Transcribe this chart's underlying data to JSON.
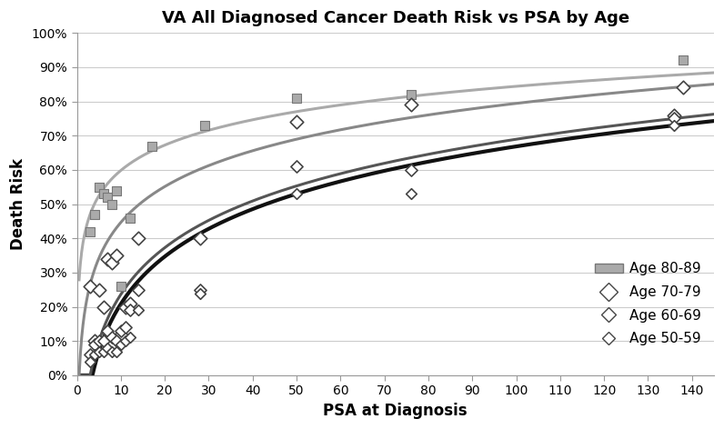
{
  "title": "VA All Diagnosed Cancer Death Risk vs PSA by Age",
  "xlabel": "PSA at Diagnosis",
  "ylabel": "Death Risk",
  "xlim": [
    0,
    145
  ],
  "ylim": [
    0,
    1.0
  ],
  "xticks": [
    0,
    10,
    20,
    30,
    40,
    50,
    60,
    70,
    80,
    90,
    100,
    110,
    120,
    130,
    140
  ],
  "yticks": [
    0,
    0.1,
    0.2,
    0.3,
    0.4,
    0.5,
    0.6,
    0.7,
    0.8,
    0.9,
    1.0
  ],
  "scatter_80_89": {
    "x": [
      3,
      4,
      5,
      6,
      7,
      8,
      9,
      10,
      12,
      17,
      29,
      50,
      76,
      138
    ],
    "y": [
      0.42,
      0.47,
      0.55,
      0.53,
      0.52,
      0.5,
      0.54,
      0.26,
      0.46,
      0.67,
      0.73,
      0.81,
      0.82,
      0.92
    ],
    "color": "#aaaaaa",
    "edgecolor": "#777777",
    "marker": "s",
    "size": 55
  },
  "scatter_70_79": {
    "x": [
      3,
      4,
      5,
      6,
      7,
      8,
      9,
      10,
      11,
      12,
      14,
      28,
      50,
      76,
      136,
      138
    ],
    "y": [
      0.26,
      0.1,
      0.25,
      0.2,
      0.34,
      0.33,
      0.35,
      0.12,
      0.2,
      0.21,
      0.4,
      0.4,
      0.74,
      0.79,
      0.76,
      0.84
    ],
    "facecolor": "white",
    "edgecolor": "#444444",
    "marker": "D",
    "size": 55,
    "linewidth": 1.2
  },
  "scatter_60_69": {
    "x": [
      3,
      4,
      5,
      6,
      7,
      8,
      9,
      10,
      11,
      12,
      14,
      28,
      50,
      76,
      136
    ],
    "y": [
      0.06,
      0.09,
      0.1,
      0.1,
      0.13,
      0.11,
      0.1,
      0.13,
      0.14,
      0.19,
      0.25,
      0.25,
      0.61,
      0.6,
      0.75
    ],
    "facecolor": "white",
    "edgecolor": "#444444",
    "marker": "D",
    "size": 45,
    "linewidth": 1.2
  },
  "scatter_50_59": {
    "x": [
      3,
      4,
      5,
      6,
      7,
      8,
      9,
      10,
      11,
      12,
      14,
      28,
      50,
      76,
      136
    ],
    "y": [
      0.04,
      0.06,
      0.07,
      0.07,
      0.08,
      0.07,
      0.07,
      0.09,
      0.1,
      0.11,
      0.19,
      0.24,
      0.53,
      0.53,
      0.73
    ],
    "facecolor": "white",
    "edgecolor": "#444444",
    "marker": "D",
    "size": 35,
    "linewidth": 1.2
  },
  "curve_80_89": {
    "color": "#aaaaaa",
    "linewidth": 2.2,
    "a": 0.1198,
    "b": 0.2885
  },
  "curve_70_79": {
    "color": "#888888",
    "linewidth": 2.2
  },
  "curve_60_69": {
    "color": "#555555",
    "linewidth": 2.2
  },
  "curve_50_59": {
    "color": "#111111",
    "linewidth": 3.0
  },
  "legend": {
    "age_80_89": "Age 80-89",
    "age_70_79": "Age 70-79",
    "age_60_69": "Age 60-69",
    "age_50_59": "Age 50-59"
  },
  "background": "#ffffff",
  "grid_color": "#cccccc"
}
